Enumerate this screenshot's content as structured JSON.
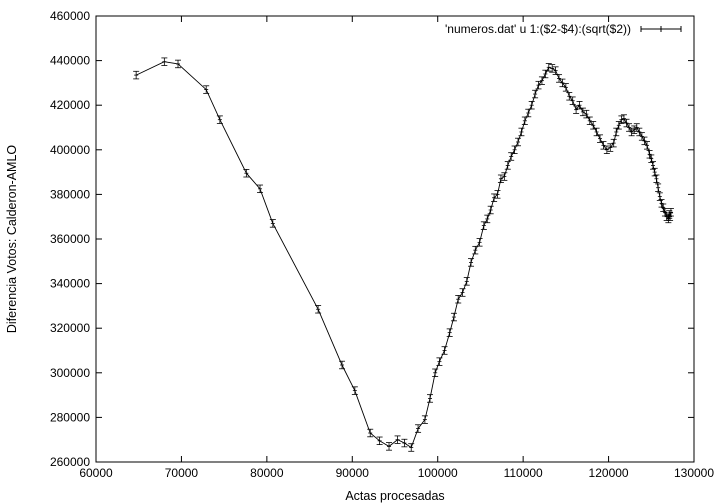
{
  "chart_data": {
    "type": "line",
    "xlabel": "Actas procesadas",
    "ylabel": "Diferencia Votos: Calderon-AMLO",
    "xlim": [
      60000,
      130000
    ],
    "ylim": [
      260000,
      460000
    ],
    "x_ticks": [
      60000,
      70000,
      80000,
      90000,
      100000,
      110000,
      120000,
      130000
    ],
    "y_ticks": [
      260000,
      280000,
      300000,
      320000,
      340000,
      360000,
      380000,
      400000,
      420000,
      440000,
      460000
    ],
    "x_tick_labels": [
      "60000",
      "70000",
      "80000",
      "90000",
      "100000",
      "110000",
      "120000",
      "130000"
    ],
    "y_tick_labels": [
      "260000",
      "280000",
      "300000",
      "320000",
      "340000",
      "360000",
      "380000",
      "400000",
      "420000",
      "440000",
      "460000"
    ],
    "grid": false,
    "legend_position": "top-right",
    "series": [
      {
        "name": "'numeros.dat' u 1:($2-$4):(sqrt($2))",
        "color": "#000000",
        "error_bar": 1700,
        "x": [
          64700,
          68000,
          69600,
          72900,
          74500,
          77600,
          79200,
          80700,
          86000,
          88800,
          90300,
          92100,
          93200,
          94300,
          95300,
          96100,
          96900,
          97700,
          98500,
          99100,
          99700,
          100200,
          100800,
          101400,
          101900,
          102400,
          102900,
          103400,
          103900,
          104400,
          104900,
          105400,
          105800,
          106200,
          106600,
          107000,
          107400,
          107800,
          108200,
          108600,
          109000,
          109400,
          109800,
          110200,
          110600,
          111000,
          111400,
          111800,
          112200,
          112600,
          113000,
          113400,
          113800,
          114200,
          114600,
          115000,
          115400,
          115800,
          116200,
          116600,
          117000,
          117400,
          117800,
          118200,
          118600,
          119000,
          119400,
          119800,
          120200,
          120600,
          120900,
          121200,
          121500,
          121800,
          122100,
          122400,
          122700,
          123000,
          123300,
          123600,
          123900,
          124200,
          124500,
          124800,
          125000,
          125200,
          125400,
          125600,
          125800,
          126000,
          126200,
          126400,
          126600,
          126800,
          127000,
          127100,
          127200,
          127300
        ],
        "y": [
          433500,
          439500,
          438500,
          427000,
          413500,
          389500,
          382500,
          367000,
          328500,
          303500,
          292000,
          273000,
          269500,
          267000,
          270000,
          268500,
          266500,
          275000,
          279000,
          288500,
          300000,
          305000,
          310000,
          318000,
          325000,
          333000,
          336000,
          341000,
          349500,
          355000,
          358500,
          366000,
          369000,
          373000,
          378500,
          380000,
          387000,
          388000,
          393000,
          397000,
          400000,
          403500,
          408000,
          413000,
          416500,
          420000,
          425000,
          429000,
          431000,
          434000,
          437000,
          436500,
          435500,
          432000,
          430000,
          428000,
          424000,
          422000,
          418000,
          420000,
          417000,
          416000,
          413000,
          411000,
          408000,
          405000,
          402000,
          400000,
          401000,
          403000,
          408000,
          411000,
          413500,
          414000,
          412000,
          410000,
          408000,
          409000,
          410000,
          408000,
          406000,
          404000,
          402000,
          398000,
          396000,
          393000,
          390000,
          387000,
          383000,
          379000,
          376000,
          374000,
          372000,
          370000,
          369000,
          371000,
          370000,
          372000
        ]
      }
    ]
  }
}
